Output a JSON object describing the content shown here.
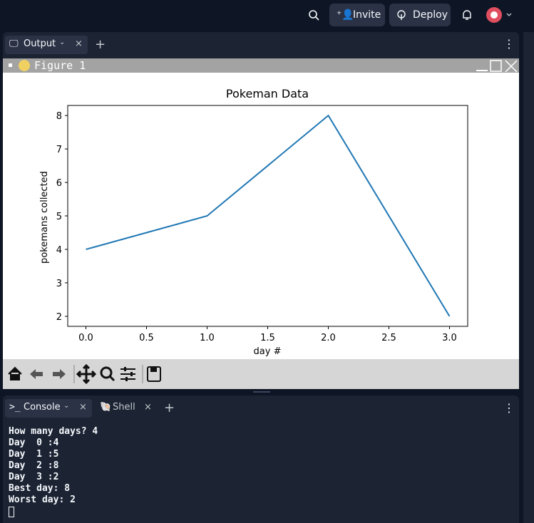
{
  "topbar": {
    "invite": "Invite",
    "deploy": "Deploy"
  },
  "output_tab": {
    "title": "Output"
  },
  "figure_window": {
    "title": "Figure 1"
  },
  "chart_data": {
    "type": "line",
    "title": "Pokeman Data",
    "x_label": "day #",
    "y_label": "pokemans collected",
    "x": [
      0,
      1,
      2,
      3
    ],
    "values": [
      4,
      5,
      8,
      2
    ],
    "color": "#1f77b4",
    "xlim": [
      -0.15,
      3.15
    ],
    "ylim": [
      1.7,
      8.3
    ],
    "xticks": [
      {
        "value": 0,
        "label": "0.0"
      },
      {
        "value": 0.5,
        "label": "0.5"
      },
      {
        "value": 1,
        "label": "1.0"
      },
      {
        "value": 1.5,
        "label": "1.5"
      },
      {
        "value": 2,
        "label": "2.0"
      },
      {
        "value": 2.5,
        "label": "2.5"
      },
      {
        "value": 3,
        "label": "3.0"
      }
    ],
    "yticks": [
      2,
      3,
      4,
      5,
      6,
      7,
      8
    ],
    "grid": false
  },
  "console_tabs": {
    "console": "Console",
    "shell": "Shell"
  },
  "console": {
    "lines": [
      "How many days? 4",
      "Day  0 :4",
      "Day  1 :5",
      "Day  2 :8",
      "Day  3 :2",
      "Best day: 8",
      "Worst day: 2"
    ]
  }
}
